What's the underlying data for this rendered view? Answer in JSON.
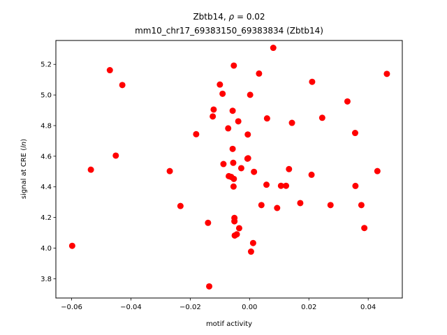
{
  "chart_data": {
    "type": "scatter",
    "title_line1_prefix": "Zbtb14, ",
    "title_line1_symbol": "ρ",
    "title_line1_suffix": " = 0.02",
    "title_line2": "mm10_chr17_69383150_69383834 (Zbtb14)",
    "xlabel": "motif activity",
    "ylabel_prefix": "signal at CRE (",
    "ylabel_italic": "ln",
    "ylabel_suffix": ")",
    "xlim": [
      -0.0653,
      0.0515
    ],
    "ylim": [
      3.674,
      5.356
    ],
    "x_ticks": [
      -0.06,
      -0.04,
      -0.02,
      0.0,
      0.02,
      0.04
    ],
    "x_tick_labels": [
      "−0.06",
      "−0.04",
      "−0.02",
      "0.00",
      "0.02",
      "0.04"
    ],
    "y_ticks": [
      3.8,
      4.0,
      4.2,
      4.4,
      4.6,
      4.8,
      5.0,
      5.2
    ],
    "y_tick_labels": [
      "3.8",
      "4.0",
      "4.2",
      "4.4",
      "4.6",
      "4.8",
      "5.0",
      "5.2"
    ],
    "grid": false,
    "marker_color": "#ff0000",
    "points": [
      [
        -0.0598,
        4.015
      ],
      [
        -0.0535,
        4.512
      ],
      [
        -0.0471,
        5.162
      ],
      [
        -0.0451,
        4.604
      ],
      [
        -0.0429,
        5.065
      ],
      [
        -0.0269,
        4.503
      ],
      [
        -0.0233,
        4.275
      ],
      [
        -0.018,
        4.744
      ],
      [
        -0.014,
        4.165
      ],
      [
        -0.0136,
        3.75
      ],
      [
        -0.0124,
        4.86
      ],
      [
        -0.0121,
        4.905
      ],
      [
        -0.01,
        5.068
      ],
      [
        -0.0091,
        5.008
      ],
      [
        -0.0088,
        4.549
      ],
      [
        -0.0072,
        4.782
      ],
      [
        -0.007,
        4.47
      ],
      [
        -0.0062,
        4.465
      ],
      [
        -0.0057,
        4.648
      ],
      [
        -0.0057,
        4.897
      ],
      [
        -0.0055,
        4.557
      ],
      [
        -0.0054,
        4.402
      ],
      [
        -0.0053,
        5.192
      ],
      [
        -0.0053,
        4.452
      ],
      [
        -0.0051,
        4.175
      ],
      [
        -0.0051,
        4.197
      ],
      [
        -0.005,
        4.082
      ],
      [
        -0.0043,
        4.09
      ],
      [
        -0.0038,
        4.828
      ],
      [
        -0.0035,
        4.13
      ],
      [
        -0.0028,
        4.522
      ],
      [
        -0.0007,
        4.584
      ],
      [
        -0.0006,
        4.742
      ],
      [
        -0.0005,
        4.587
      ],
      [
        0.0002,
        5.001
      ],
      [
        0.0005,
        3.977
      ],
      [
        0.0012,
        4.033
      ],
      [
        0.0015,
        4.498
      ],
      [
        0.0032,
        5.14
      ],
      [
        0.004,
        4.281
      ],
      [
        0.0057,
        4.414
      ],
      [
        0.0059,
        4.847
      ],
      [
        0.008,
        5.308
      ],
      [
        0.0093,
        4.262
      ],
      [
        0.0106,
        4.407
      ],
      [
        0.0123,
        4.407
      ],
      [
        0.0133,
        4.516
      ],
      [
        0.0143,
        4.818
      ],
      [
        0.0171,
        4.294
      ],
      [
        0.0209,
        4.479
      ],
      [
        0.0211,
        5.086
      ],
      [
        0.0245,
        4.851
      ],
      [
        0.0273,
        4.281
      ],
      [
        0.033,
        4.958
      ],
      [
        0.0356,
        4.752
      ],
      [
        0.0357,
        4.406
      ],
      [
        0.0377,
        4.281
      ],
      [
        0.0387,
        4.131
      ],
      [
        0.0431,
        4.503
      ],
      [
        0.0463,
        5.138
      ]
    ]
  }
}
